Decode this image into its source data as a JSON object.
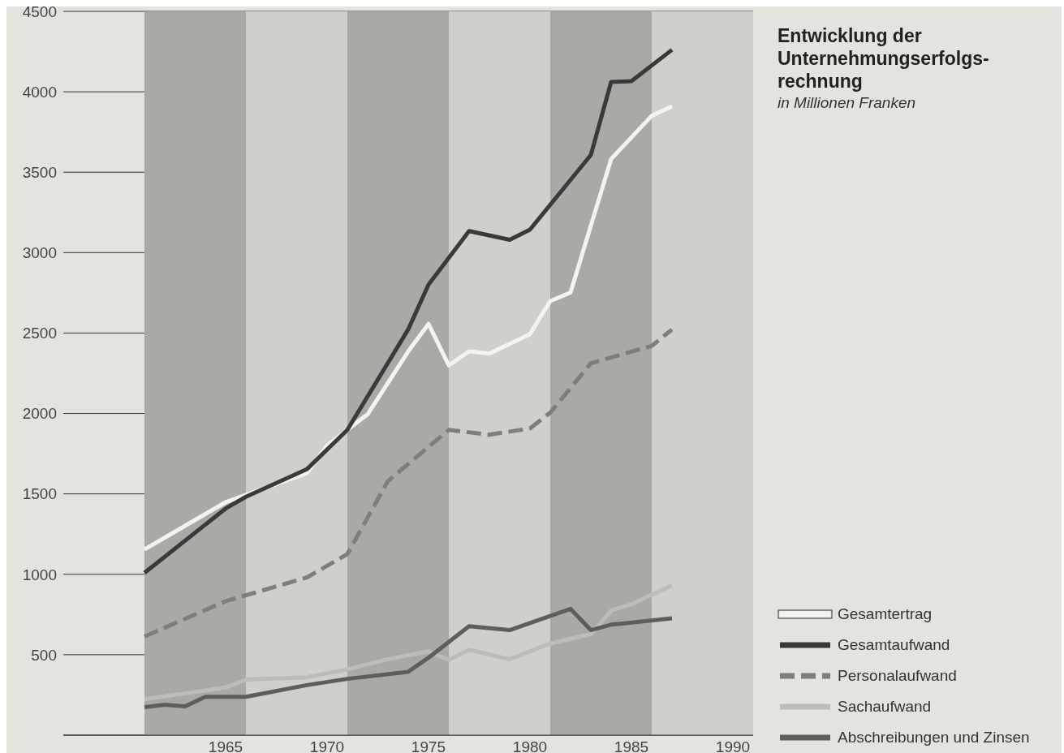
{
  "chart_data": {
    "type": "line",
    "title": "Entwicklung der Unternehmungserfolgs-rechnung",
    "subtitle": "in Millionen Franken",
    "xlim": [
      1957,
      1991
    ],
    "xticks": [
      1965,
      1970,
      1975,
      1980,
      1985,
      1990
    ],
    "ylim": [
      0,
      4500
    ],
    "yticks": [
      500,
      1000,
      1500,
      2000,
      2500,
      3000,
      3500,
      4000,
      4500
    ],
    "grid": "y",
    "legend": "bottom right",
    "marker": "none",
    "bands": [
      {
        "axis": "x",
        "from": 1961,
        "to": 1966,
        "color": "#a9a9a6"
      },
      {
        "axis": "x",
        "from": 1966,
        "to": 1971,
        "color": "#d0cfcb"
      },
      {
        "axis": "x",
        "from": 1971,
        "to": 1976,
        "color": "#a9a9a6"
      },
      {
        "axis": "x",
        "from": 1976,
        "to": 1981,
        "color": "#d0cfcb"
      },
      {
        "axis": "x",
        "from": 1981,
        "to": 1986,
        "color": "#a9a9a6"
      },
      {
        "axis": "x",
        "from": 1986,
        "to": 1991,
        "color": "#d0cfcb"
      }
    ],
    "series": [
      {
        "name": "Gesamtertrag",
        "color": "#f4f4ef",
        "line_style": "solid",
        "x": [
          1961,
          1965,
          1969,
          1970,
          1971,
          1972,
          1974,
          1975,
          1976,
          1977,
          1978,
          1980,
          1981,
          1982,
          1984,
          1986,
          1987
        ],
        "values": [
          1155,
          1448,
          1629,
          1800,
          1898,
          1995,
          2386,
          2557,
          2299,
          2386,
          2372,
          2494,
          2699,
          2752,
          3582,
          3851,
          3910
        ]
      },
      {
        "name": "Gesamtaufwand",
        "color": "#3a3a3a",
        "line_style": "solid",
        "x": [
          1961,
          1965,
          1966,
          1969,
          1971,
          1974,
          1975,
          1977,
          1979,
          1980,
          1983,
          1984,
          1985,
          1987
        ],
        "values": [
          1009,
          1409,
          1482,
          1653,
          1898,
          2523,
          2801,
          3134,
          3080,
          3143,
          3607,
          4061,
          4066,
          4261
        ]
      },
      {
        "name": "Personalaufwand",
        "color": "#7e7e7c",
        "line_style": "dashed",
        "x": [
          1961,
          1965,
          1969,
          1971,
          1973,
          1976,
          1978,
          1980,
          1981,
          1983,
          1986,
          1987
        ],
        "values": [
          613,
          833,
          980,
          1126,
          1580,
          1898,
          1868,
          1907,
          2005,
          2312,
          2420,
          2522
        ]
      },
      {
        "name": "Sachaufwand",
        "color": "#bcbcb8",
        "line_style": "solid",
        "x": [
          1961,
          1965,
          1966,
          1969,
          1971,
          1973,
          1975,
          1976,
          1977,
          1979,
          1981,
          1983,
          1984,
          1985,
          1987
        ],
        "values": [
          223,
          296,
          345,
          360,
          409,
          472,
          521,
          468,
          531,
          472,
          570,
          628,
          775,
          814,
          931
        ]
      },
      {
        "name": "Abschreibungen und Zinsen",
        "color": "#5e5e5c",
        "line_style": "solid",
        "x": [
          1961,
          1962,
          1963,
          1964,
          1966,
          1969,
          1971,
          1974,
          1975,
          1977,
          1979,
          1982,
          1983,
          1984,
          1987
        ],
        "values": [
          174,
          189,
          179,
          238,
          238,
          311,
          350,
          394,
          482,
          677,
          653,
          785,
          653,
          687,
          726
        ]
      }
    ]
  }
}
